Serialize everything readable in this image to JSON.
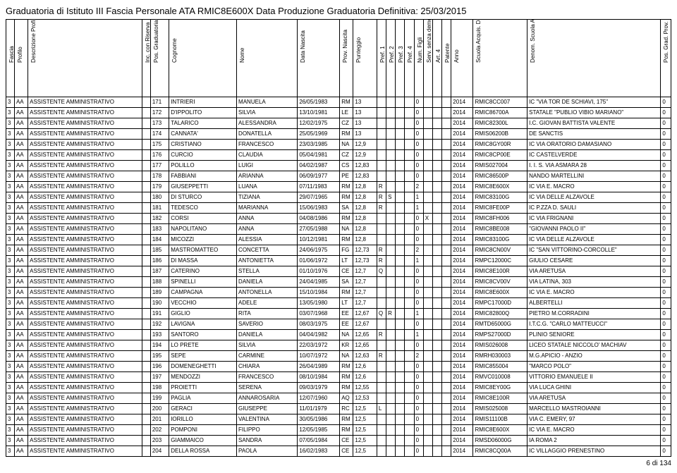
{
  "title": "Graduatoria di Istituto III Fascia Personale ATA RMIC8E600X Data Produzione Graduatoria Definitiva: 25/03/2015",
  "footer": "6 di 134",
  "headers": [
    "Fascia",
    "Profilo",
    "Descrizione Profilo",
    "Inc. con Riserva",
    "Pos. Graduatoria",
    "Cognome",
    "Nome",
    "Data Nascita",
    "Prov. Nascita",
    "Punteggio",
    "Pref. 1",
    "Pref. 2",
    "Pref. 3",
    "Pref. 4",
    "Num. Figli",
    "Serv. senza demer.",
    "Art. 4",
    "Patente",
    "Anno",
    "Scuola Acquis. Domanda",
    "Denom. Scuola Acquis. Domanda",
    "Pos. Grad. Prov."
  ],
  "rows": [
    [
      "3",
      "AA",
      "ASSISTENTE AMMINISTRATIVO",
      "",
      "171",
      "INTRIERI",
      "MANUELA",
      "26/05/1983",
      "RM",
      "13",
      "",
      "",
      "",
      "",
      "0",
      "",
      "",
      "",
      "2014",
      "RMIC8CC007",
      "IC \"VIA TOR DE SCHIAVI, 175\"",
      "0"
    ],
    [
      "3",
      "AA",
      "ASSISTENTE AMMINISTRATIVO",
      "",
      "172",
      "D'IPPOLITO",
      "SILVIA",
      "13/10/1981",
      "LE",
      "13",
      "",
      "",
      "",
      "",
      "0",
      "",
      "",
      "",
      "2014",
      "RMIC86700A",
      "STATALE \"PUBLIO VIBIO MARIANO\"",
      "0"
    ],
    [
      "3",
      "AA",
      "ASSISTENTE AMMINISTRATIVO",
      "",
      "173",
      "TALARICO",
      "ALESSANDRA",
      "12/02/1975",
      "CZ",
      "13",
      "",
      "",
      "",
      "",
      "0",
      "",
      "",
      "",
      "2014",
      "RMIC82300L",
      "I.C. GIOVAN BATTISTA VALENTE",
      "0"
    ],
    [
      "3",
      "AA",
      "ASSISTENTE AMMINISTRATIVO",
      "",
      "174",
      "CANNATA'",
      "DONATELLA",
      "25/05/1969",
      "RM",
      "13",
      "",
      "",
      "",
      "",
      "0",
      "",
      "",
      "",
      "2014",
      "RMIS06200B",
      "DE SANCTIS",
      "0"
    ],
    [
      "3",
      "AA",
      "ASSISTENTE AMMINISTRATIVO",
      "",
      "175",
      "CRISTIANO",
      "FRANCESCO",
      "23/03/1985",
      "NA",
      "12,9",
      "",
      "",
      "",
      "",
      "0",
      "",
      "",
      "",
      "2014",
      "RMIC8GY00R",
      "IC VIA ORATORIO DAMASIANO",
      "0"
    ],
    [
      "3",
      "AA",
      "ASSISTENTE AMMINISTRATIVO",
      "",
      "176",
      "CURCIO",
      "CLAUDIA",
      "05/04/1981",
      "CZ",
      "12,9",
      "",
      "",
      "",
      "",
      "0",
      "",
      "",
      "",
      "2014",
      "RMIC8CP00E",
      "IC CASTELVERDE",
      "0"
    ],
    [
      "3",
      "AA",
      "ASSISTENTE AMMINISTRATIVO",
      "",
      "177",
      "POLILLO",
      "LUIGI",
      "04/02/1987",
      "CS",
      "12,83",
      "",
      "",
      "",
      "",
      "0",
      "",
      "",
      "",
      "2014",
      "RMIS027004",
      "I. I. S. VIA ASMARA 28",
      "0"
    ],
    [
      "3",
      "AA",
      "ASSISTENTE AMMINISTRATIVO",
      "",
      "178",
      "FABBIANI",
      "ARIANNA",
      "06/09/1977",
      "PE",
      "12,83",
      "",
      "",
      "",
      "",
      "0",
      "",
      "",
      "",
      "2014",
      "RMIC86500P",
      "NANDO MARTELLINI",
      "0"
    ],
    [
      "3",
      "AA",
      "ASSISTENTE AMMINISTRATIVO",
      "",
      "179",
      "GIUSEPPETTI",
      "LUANA",
      "07/11/1983",
      "RM",
      "12,8",
      "R",
      "",
      "",
      "",
      "2",
      "",
      "",
      "",
      "2014",
      "RMIC8E600X",
      "IC VIA E. MACRO",
      "0"
    ],
    [
      "3",
      "AA",
      "ASSISTENTE AMMINISTRATIVO",
      "",
      "180",
      "DI STURCO",
      "TIZIANA",
      "29/07/1965",
      "RM",
      "12,8",
      "R",
      "S",
      "",
      "",
      "1",
      "",
      "",
      "",
      "2014",
      "RMIC83100G",
      "IC VIA DELLE ALZAVOLE",
      "0"
    ],
    [
      "3",
      "AA",
      "ASSISTENTE AMMINISTRATIVO",
      "",
      "181",
      "TEDESCO",
      "MARIANNA",
      "15/06/1983",
      "SA",
      "12,8",
      "R",
      "",
      "",
      "",
      "1",
      "",
      "",
      "",
      "2014",
      "RMIC8FE00P",
      "IC P.ZZA D. SAULI",
      "0"
    ],
    [
      "3",
      "AA",
      "ASSISTENTE AMMINISTRATIVO",
      "",
      "182",
      "CORSI",
      "ANNA",
      "04/08/1986",
      "RM",
      "12,8",
      "",
      "",
      "",
      "",
      "0",
      "X",
      "",
      "",
      "2014",
      "RMIC8FH006",
      "IC VIA FRIGNANI",
      "0"
    ],
    [
      "3",
      "AA",
      "ASSISTENTE AMMINISTRATIVO",
      "",
      "183",
      "NAPOLITANO",
      "ANNA",
      "27/05/1988",
      "NA",
      "12,8",
      "",
      "",
      "",
      "",
      "0",
      "",
      "",
      "",
      "2014",
      "RMIC8BE008",
      "\"GIOVANNI PAOLO II\"",
      "0"
    ],
    [
      "3",
      "AA",
      "ASSISTENTE AMMINISTRATIVO",
      "",
      "184",
      "MICOZZI",
      "ALESSIA",
      "10/12/1981",
      "RM",
      "12,8",
      "",
      "",
      "",
      "",
      "0",
      "",
      "",
      "",
      "2014",
      "RMIC83100G",
      "IC VIA DELLE ALZAVOLE",
      "0"
    ],
    [
      "3",
      "AA",
      "ASSISTENTE AMMINISTRATIVO",
      "",
      "185",
      "MASTROMATTEO",
      "CONCETTA",
      "24/06/1975",
      "FG",
      "12,73",
      "R",
      "",
      "",
      "",
      "2",
      "",
      "",
      "",
      "2014",
      "RMIC8CN00V",
      "IC \"SAN VITTORINO-CORCOLLE\"",
      "0"
    ],
    [
      "3",
      "AA",
      "ASSISTENTE AMMINISTRATIVO",
      "",
      "186",
      "DI MASSA",
      "ANTONIETTA",
      "01/06/1972",
      "LT",
      "12,73",
      "R",
      "",
      "",
      "",
      "1",
      "",
      "",
      "",
      "2014",
      "RMPC12000C",
      "GIULIO CESARE",
      "0"
    ],
    [
      "3",
      "AA",
      "ASSISTENTE AMMINISTRATIVO",
      "",
      "187",
      "CATERINO",
      "STELLA",
      "01/10/1976",
      "CE",
      "12,7",
      "Q",
      "",
      "",
      "",
      "0",
      "",
      "",
      "",
      "2014",
      "RMIC8E100R",
      "VIA ARETUSA",
      "0"
    ],
    [
      "3",
      "AA",
      "ASSISTENTE AMMINISTRATIVO",
      "",
      "188",
      "SPINELLI",
      "DANIELA",
      "24/04/1985",
      "SA",
      "12,7",
      "",
      "",
      "",
      "",
      "0",
      "",
      "",
      "",
      "2014",
      "RMIC8CV00V",
      "VIA LATINA, 303",
      "0"
    ],
    [
      "3",
      "AA",
      "ASSISTENTE AMMINISTRATIVO",
      "",
      "189",
      "CAMPAGNA",
      "ANTONELLA",
      "15/10/1984",
      "RM",
      "12,7",
      "",
      "",
      "",
      "",
      "0",
      "",
      "",
      "",
      "2014",
      "RMIC8E600X",
      "IC VIA E. MACRO",
      "0"
    ],
    [
      "3",
      "AA",
      "ASSISTENTE AMMINISTRATIVO",
      "",
      "190",
      "VECCHIO",
      "ADELE",
      "13/05/1980",
      "LT",
      "12,7",
      "",
      "",
      "",
      "",
      "0",
      "",
      "",
      "",
      "2014",
      "RMPC17000D",
      "ALBERTELLI",
      "0"
    ],
    [
      "3",
      "AA",
      "ASSISTENTE AMMINISTRATIVO",
      "",
      "191",
      "GIGLIO",
      "RITA",
      "03/07/1968",
      "EE",
      "12,67",
      "Q",
      "R",
      "",
      "",
      "1",
      "",
      "",
      "",
      "2014",
      "RMIC82800Q",
      "PIETRO M.CORRADINI",
      "0"
    ],
    [
      "3",
      "AA",
      "ASSISTENTE AMMINISTRATIVO",
      "",
      "192",
      "LAVIGNA",
      "SAVERIO",
      "08/03/1975",
      "EE",
      "12,67",
      "",
      "",
      "",
      "",
      "0",
      "",
      "",
      "",
      "2014",
      "RMTD65000G",
      "I.T.C.G. \"CARLO MATTEUCCI\"",
      "0"
    ],
    [
      "3",
      "AA",
      "ASSISTENTE AMMINISTRATIVO",
      "",
      "193",
      "SANTORO",
      "DANIELA",
      "04/04/1982",
      "NA",
      "12,65",
      "R",
      "",
      "",
      "",
      "1",
      "",
      "",
      "",
      "2014",
      "RMPS27000D",
      "PLINIO SENIORE",
      "0"
    ],
    [
      "3",
      "AA",
      "ASSISTENTE AMMINISTRATIVO",
      "",
      "194",
      "LO PRETE",
      "SILVIA",
      "22/03/1972",
      "KR",
      "12,65",
      "",
      "",
      "",
      "",
      "0",
      "",
      "",
      "",
      "2014",
      "RMIS026008",
      "LICEO STATALE NICCOLO' MACHIAV",
      "0"
    ],
    [
      "3",
      "AA",
      "ASSISTENTE AMMINISTRATIVO",
      "",
      "195",
      "SEPE",
      "CARMINE",
      "10/07/1972",
      "NA",
      "12,63",
      "R",
      "",
      "",
      "",
      "2",
      "",
      "",
      "",
      "2014",
      "RMRH030003",
      "M.G.APICIO - ANZIO",
      "0"
    ],
    [
      "3",
      "AA",
      "ASSISTENTE AMMINISTRATIVO",
      "",
      "196",
      "DOMENEGHETTI",
      "CHIARA",
      "26/04/1989",
      "RM",
      "12,6",
      "",
      "",
      "",
      "",
      "0",
      "",
      "",
      "",
      "2014",
      "RMIC855004",
      "\"MARCO POLO\"",
      "0"
    ],
    [
      "3",
      "AA",
      "ASSISTENTE AMMINISTRATIVO",
      "",
      "197",
      "MENDOZZI",
      "FRANCESCO",
      "08/10/1984",
      "RM",
      "12,6",
      "",
      "",
      "",
      "",
      "0",
      "",
      "",
      "",
      "2014",
      "RMVC010008",
      "VITTORIO EMANUELE II",
      "0"
    ],
    [
      "3",
      "AA",
      "ASSISTENTE AMMINISTRATIVO",
      "",
      "198",
      "PROIETTI",
      "SERENA",
      "09/03/1979",
      "RM",
      "12,55",
      "",
      "",
      "",
      "",
      "0",
      "",
      "",
      "",
      "2014",
      "RMIC8EY00G",
      "VIA LUCA GHINI",
      "0"
    ],
    [
      "3",
      "AA",
      "ASSISTENTE AMMINISTRATIVO",
      "",
      "199",
      "PAGLIA",
      "ANNAROSARIA",
      "12/07/1960",
      "AQ",
      "12,53",
      "",
      "",
      "",
      "",
      "0",
      "",
      "",
      "",
      "2014",
      "RMIC8E100R",
      "VIA ARETUSA",
      "0"
    ],
    [
      "3",
      "AA",
      "ASSISTENTE AMMINISTRATIVO",
      "",
      "200",
      "GERACI",
      "GIUSEPPE",
      "11/01/1979",
      "RC",
      "12,5",
      "L",
      "",
      "",
      "",
      "0",
      "",
      "",
      "",
      "2014",
      "RMIS025008",
      "MARCELLO MASTROIANNI",
      "0"
    ],
    [
      "3",
      "AA",
      "ASSISTENTE AMMINISTRATIVO",
      "",
      "201",
      "IORILLO",
      "VALENTINA",
      "30/05/1986",
      "RM",
      "12,5",
      "",
      "",
      "",
      "",
      "0",
      "",
      "",
      "",
      "2014",
      "RMIS11100B",
      "VIA C. EMERY, 97",
      "0"
    ],
    [
      "3",
      "AA",
      "ASSISTENTE AMMINISTRATIVO",
      "",
      "202",
      "POMPONI",
      "FILIPPO",
      "12/05/1985",
      "RM",
      "12,5",
      "",
      "",
      "",
      "",
      "0",
      "",
      "",
      "",
      "2014",
      "RMIC8E600X",
      "IC VIA E. MACRO",
      "0"
    ],
    [
      "3",
      "AA",
      "ASSISTENTE AMMINISTRATIVO",
      "",
      "203",
      "GIAMMAICO",
      "SANDRA",
      "07/05/1984",
      "CE",
      "12,5",
      "",
      "",
      "",
      "",
      "0",
      "",
      "",
      "",
      "2014",
      "RMSD06000G",
      "IA ROMA 2",
      "0"
    ],
    [
      "3",
      "AA",
      "ASSISTENTE AMMINISTRATIVO",
      "",
      "204",
      "DELLA ROSSA",
      "PAOLA",
      "16/02/1983",
      "CE",
      "12,5",
      "",
      "",
      "",
      "",
      "0",
      "",
      "",
      "",
      "2014",
      "RMIC8CQ00A",
      "IC VILLAGGIO PRENESTINO",
      "0"
    ]
  ]
}
